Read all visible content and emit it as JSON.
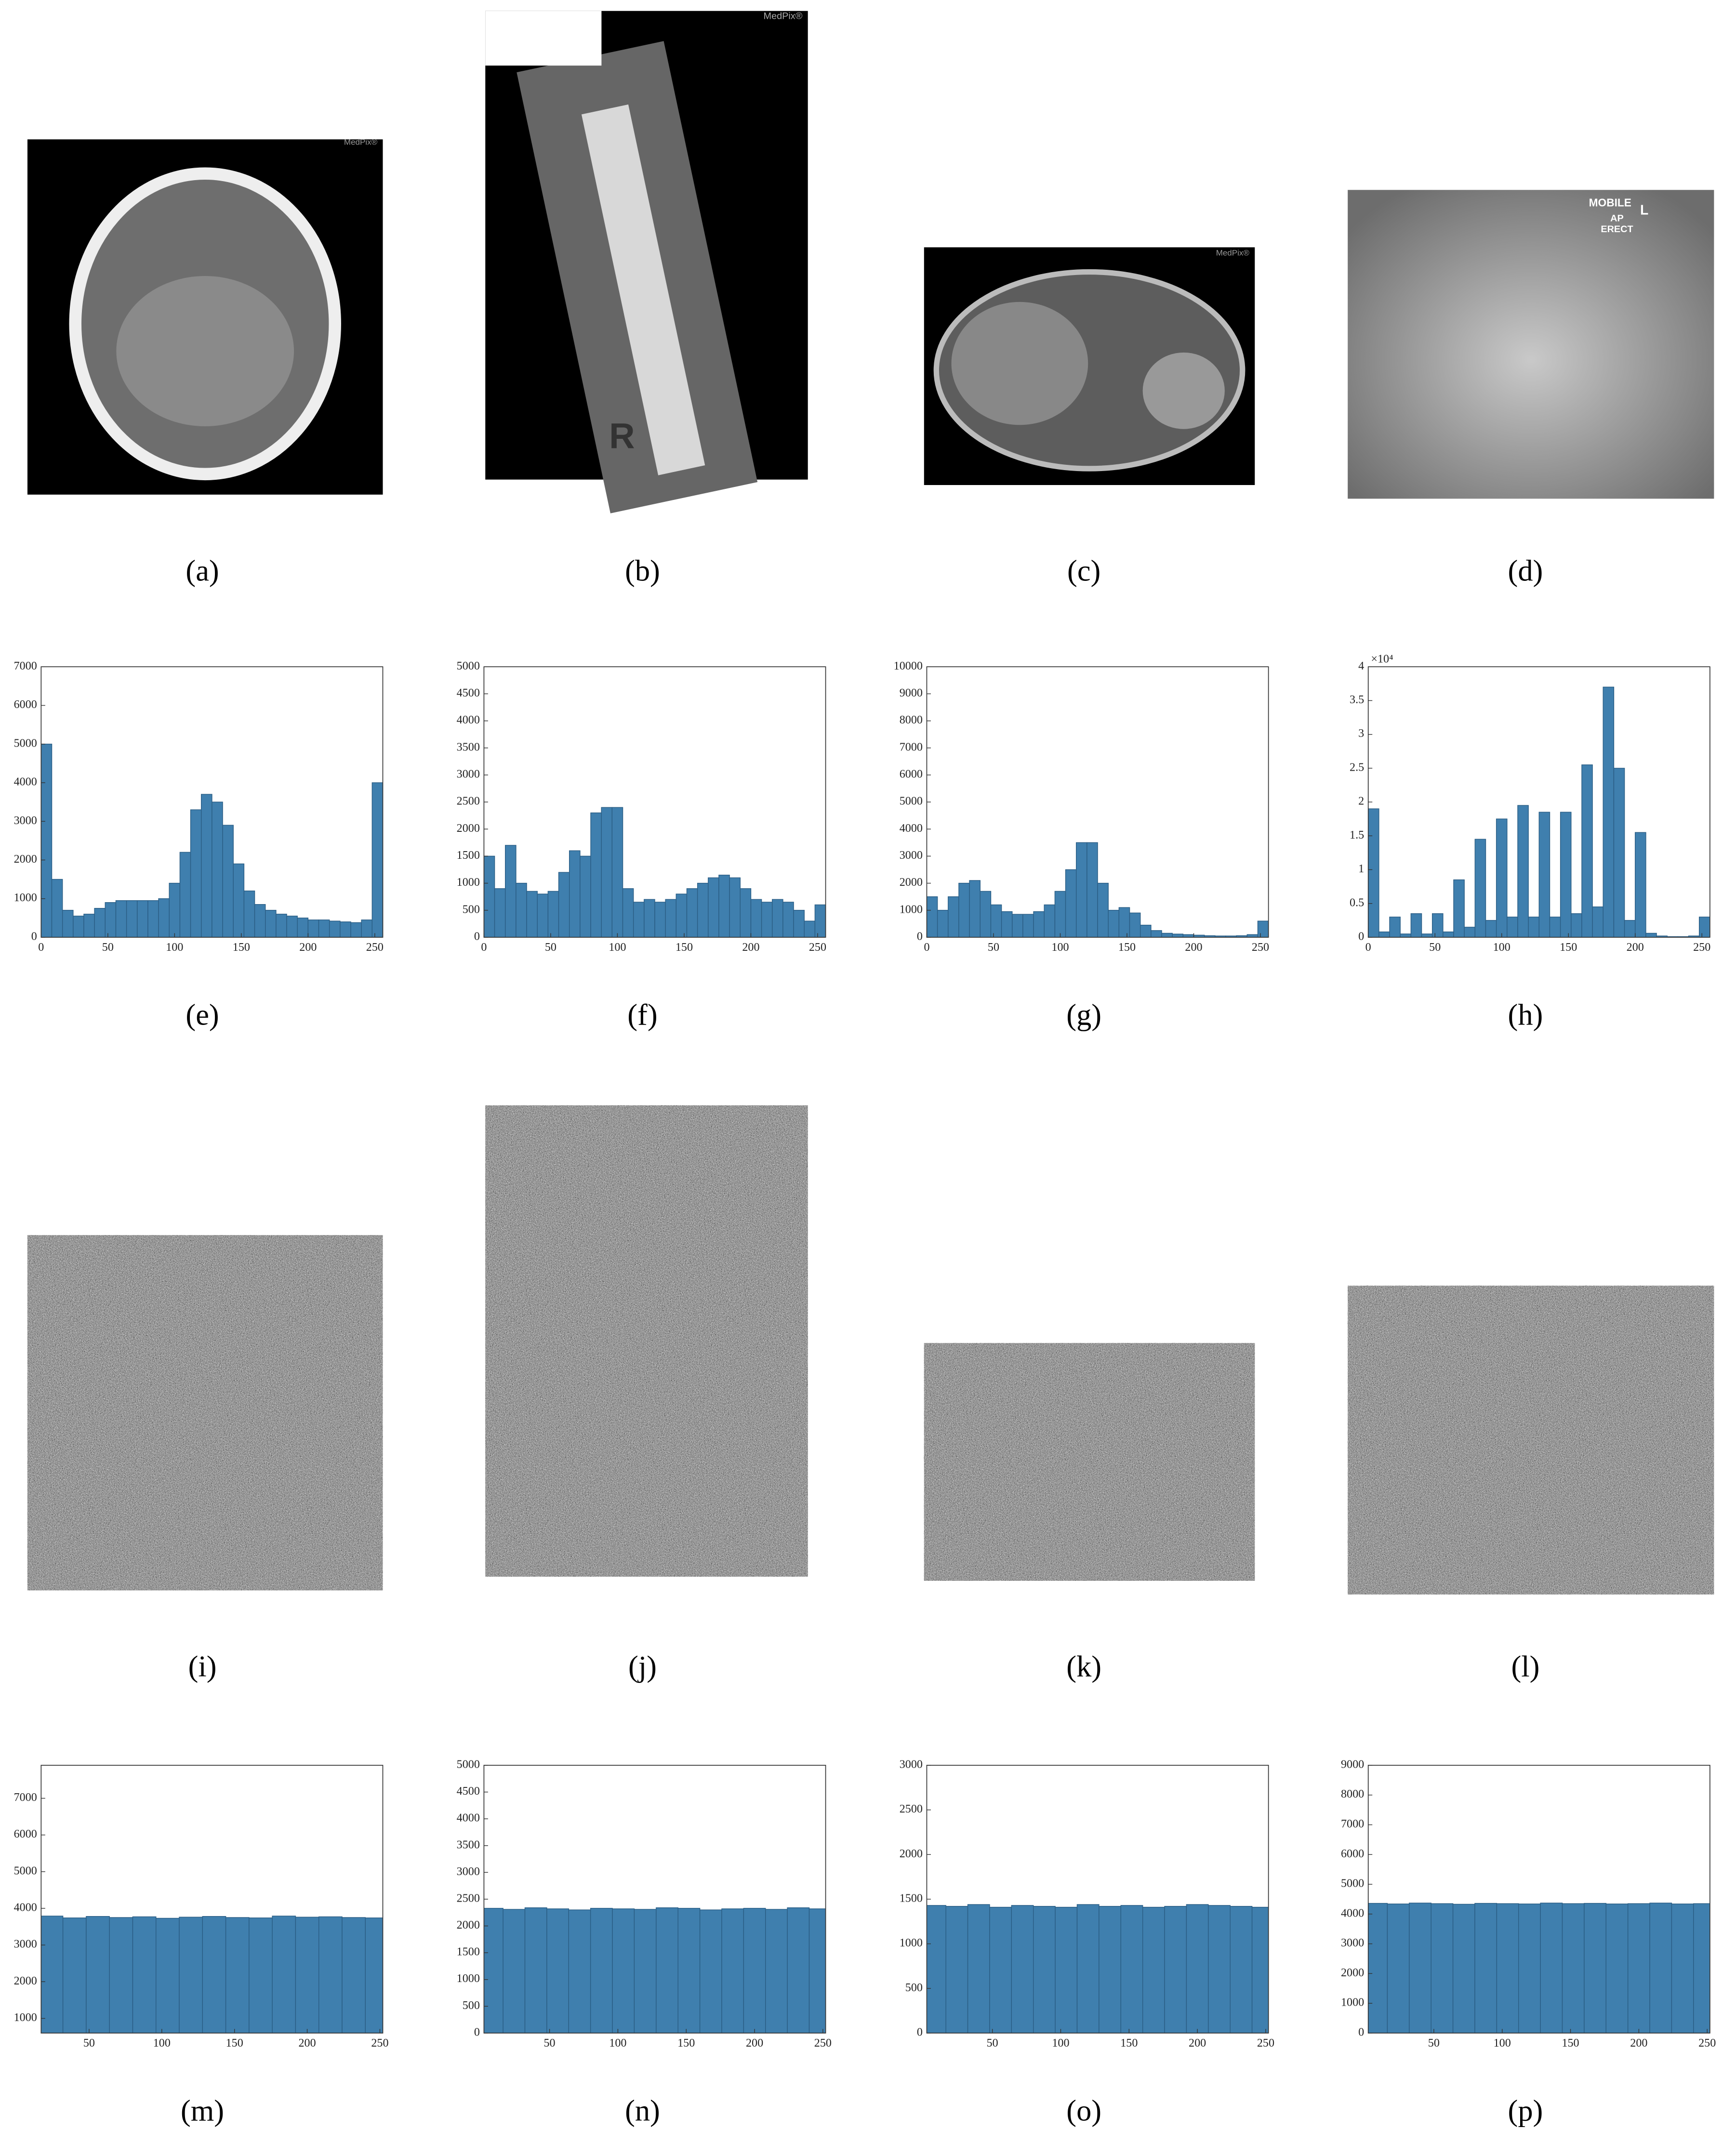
{
  "panels": [
    {
      "label": "(a)",
      "texts": [
        "MedPix®"
      ]
    },
    {
      "label": "(b)",
      "texts": [
        "MedPix®",
        "R"
      ]
    },
    {
      "label": "(c)",
      "texts": [
        "MedPix®"
      ]
    },
    {
      "label": "(d)",
      "texts": [
        "MOBILE",
        "L",
        "AP",
        "ERECT"
      ]
    },
    {
      "label": "(i)"
    },
    {
      "label": "(j)"
    },
    {
      "label": "(k)"
    },
    {
      "label": "(l)"
    }
  ],
  "chart_data": [
    {
      "type": "histogram",
      "label": "(e)",
      "color": "#3f7fae",
      "bins": [
        0,
        8,
        16,
        24,
        32,
        40,
        48,
        56,
        64,
        72,
        80,
        88,
        96,
        104,
        112,
        120,
        128,
        136,
        144,
        152,
        160,
        168,
        176,
        184,
        192,
        200,
        208,
        216,
        224,
        232,
        240,
        248,
        256
      ],
      "values": [
        5000,
        1500,
        700,
        550,
        600,
        750,
        900,
        950,
        950,
        950,
        950,
        1000,
        1400,
        2200,
        3300,
        3700,
        3500,
        2900,
        1900,
        1200,
        850,
        700,
        600,
        550,
        500,
        450,
        450,
        420,
        400,
        380,
        450,
        4000
      ],
      "xlim": [
        0,
        256
      ],
      "xticks": [
        0,
        50,
        100,
        150,
        200,
        250
      ],
      "ylim": [
        0,
        7000
      ],
      "yticks": [
        0,
        1000,
        2000,
        3000,
        4000,
        5000,
        6000,
        7000
      ]
    },
    {
      "type": "histogram",
      "label": "(f)",
      "color": "#3f7fae",
      "bins": [
        0,
        8,
        16,
        24,
        32,
        40,
        48,
        56,
        64,
        72,
        80,
        88,
        96,
        104,
        112,
        120,
        128,
        136,
        144,
        152,
        160,
        168,
        176,
        184,
        192,
        200,
        208,
        216,
        224,
        232,
        240,
        248,
        256
      ],
      "values": [
        1500,
        900,
        1700,
        1000,
        850,
        800,
        850,
        1200,
        1600,
        1500,
        2300,
        2400,
        2400,
        900,
        650,
        700,
        650,
        700,
        800,
        900,
        1000,
        1100,
        1150,
        1100,
        900,
        700,
        650,
        700,
        650,
        500,
        300,
        600
      ],
      "xlim": [
        0,
        256
      ],
      "xticks": [
        0,
        50,
        100,
        150,
        200,
        250
      ],
      "ylim": [
        0,
        5000
      ],
      "yticks": [
        0,
        500,
        1000,
        1500,
        2000,
        2500,
        3000,
        3500,
        4000,
        4500,
        5000
      ]
    },
    {
      "type": "histogram",
      "label": "(g)",
      "color": "#3f7fae",
      "bins": [
        0,
        8,
        16,
        24,
        32,
        40,
        48,
        56,
        64,
        72,
        80,
        88,
        96,
        104,
        112,
        120,
        128,
        136,
        144,
        152,
        160,
        168,
        176,
        184,
        192,
        200,
        208,
        216,
        224,
        232,
        240,
        248,
        256
      ],
      "values": [
        1500,
        1000,
        1500,
        2000,
        2100,
        1700,
        1200,
        950,
        850,
        850,
        950,
        1200,
        1700,
        2500,
        3500,
        3500,
        2000,
        1000,
        1100,
        900,
        450,
        250,
        150,
        120,
        100,
        80,
        60,
        50,
        50,
        60,
        100,
        600
      ],
      "xlim": [
        0,
        256
      ],
      "xticks": [
        0,
        50,
        100,
        150,
        200,
        250
      ],
      "ylim": [
        0,
        10000
      ],
      "yticks": [
        0,
        1000,
        2000,
        3000,
        4000,
        5000,
        6000,
        7000,
        8000,
        9000,
        10000
      ]
    },
    {
      "type": "histogram",
      "label": "(h)",
      "color": "#3f7fae",
      "y_exponent": "×10⁴",
      "bins": [
        0,
        8,
        16,
        24,
        32,
        40,
        48,
        56,
        64,
        72,
        80,
        88,
        96,
        104,
        112,
        120,
        128,
        136,
        144,
        152,
        160,
        168,
        176,
        184,
        192,
        200,
        208,
        216,
        224,
        232,
        240,
        248,
        256
      ],
      "values": [
        19000,
        800,
        3000,
        500,
        3500,
        500,
        3500,
        800,
        8500,
        1500,
        14500,
        2500,
        17500,
        3000,
        19500,
        3000,
        18500,
        3000,
        18500,
        3500,
        25500,
        4500,
        37000,
        25000,
        2500,
        15500,
        600,
        200,
        100,
        100,
        200,
        3000
      ],
      "xlim": [
        0,
        256
      ],
      "xticks": [
        0,
        50,
        100,
        150,
        200,
        250
      ],
      "ylim": [
        0,
        40000
      ],
      "yticks": [
        0,
        {
          "value": 5000,
          "label": "0.5"
        },
        {
          "value": 10000,
          "label": "1"
        },
        {
          "value": 15000,
          "label": "1.5"
        },
        {
          "value": 20000,
          "label": "2"
        },
        {
          "value": 25000,
          "label": "2.5"
        },
        {
          "value": 30000,
          "label": "3"
        },
        {
          "value": 35000,
          "label": "3.5"
        },
        {
          "value": 40000,
          "label": "4"
        }
      ]
    },
    {
      "type": "histogram",
      "label": "(m)",
      "color": "#3f7fae",
      "bins": [
        0,
        16,
        32,
        48,
        64,
        80,
        96,
        112,
        128,
        144,
        160,
        176,
        192,
        208,
        224,
        240,
        256
      ],
      "values": [
        3760,
        3790,
        3740,
        3780,
        3750,
        3770,
        3730,
        3760,
        3780,
        3750,
        3740,
        3790,
        3760,
        3770,
        3750,
        3740
      ],
      "xlim": [
        17,
        252
      ],
      "xticks": [
        50,
        100,
        150,
        200,
        250
      ],
      "ylim": [
        600,
        7900
      ],
      "yticks": [
        1000,
        2000,
        3000,
        4000,
        5000,
        6000,
        7000
      ]
    },
    {
      "type": "histogram",
      "label": "(n)",
      "color": "#3f7fae",
      "bins": [
        0,
        16,
        32,
        48,
        64,
        80,
        96,
        112,
        128,
        144,
        160,
        176,
        192,
        208,
        224,
        240,
        256
      ],
      "values": [
        2330,
        2310,
        2340,
        2320,
        2300,
        2330,
        2320,
        2310,
        2340,
        2330,
        2300,
        2320,
        2330,
        2310,
        2340,
        2320
      ],
      "xlim": [
        2,
        252
      ],
      "xticks": [
        50,
        100,
        150,
        200,
        250
      ],
      "ylim": [
        0,
        5000
      ],
      "yticks": [
        0,
        500,
        1000,
        1500,
        2000,
        2500,
        3000,
        3500,
        4000,
        4500,
        5000
      ]
    },
    {
      "type": "histogram",
      "label": "(o)",
      "color": "#3f7fae",
      "bins": [
        0,
        16,
        32,
        48,
        64,
        80,
        96,
        112,
        128,
        144,
        160,
        176,
        192,
        208,
        224,
        240,
        256
      ],
      "values": [
        1430,
        1420,
        1440,
        1410,
        1430,
        1420,
        1410,
        1440,
        1420,
        1430,
        1410,
        1420,
        1440,
        1430,
        1420,
        1410
      ],
      "xlim": [
        2,
        252
      ],
      "xticks": [
        50,
        100,
        150,
        200,
        250
      ],
      "ylim": [
        0,
        3000
      ],
      "yticks": [
        0,
        500,
        1000,
        1500,
        2000,
        2500,
        3000
      ]
    },
    {
      "type": "histogram",
      "label": "(p)",
      "color": "#3f7fae",
      "bins": [
        0,
        16,
        32,
        48,
        64,
        80,
        96,
        112,
        128,
        144,
        160,
        176,
        192,
        208,
        224,
        240,
        256
      ],
      "values": [
        4360,
        4340,
        4370,
        4350,
        4330,
        4360,
        4350,
        4340,
        4370,
        4350,
        4360,
        4340,
        4350,
        4370,
        4340,
        4350
      ],
      "xlim": [
        2,
        252
      ],
      "xticks": [
        50,
        100,
        150,
        200,
        250
      ],
      "ylim": [
        0,
        9000
      ],
      "yticks": [
        0,
        1000,
        2000,
        3000,
        4000,
        5000,
        6000,
        7000,
        8000,
        9000
      ]
    }
  ]
}
